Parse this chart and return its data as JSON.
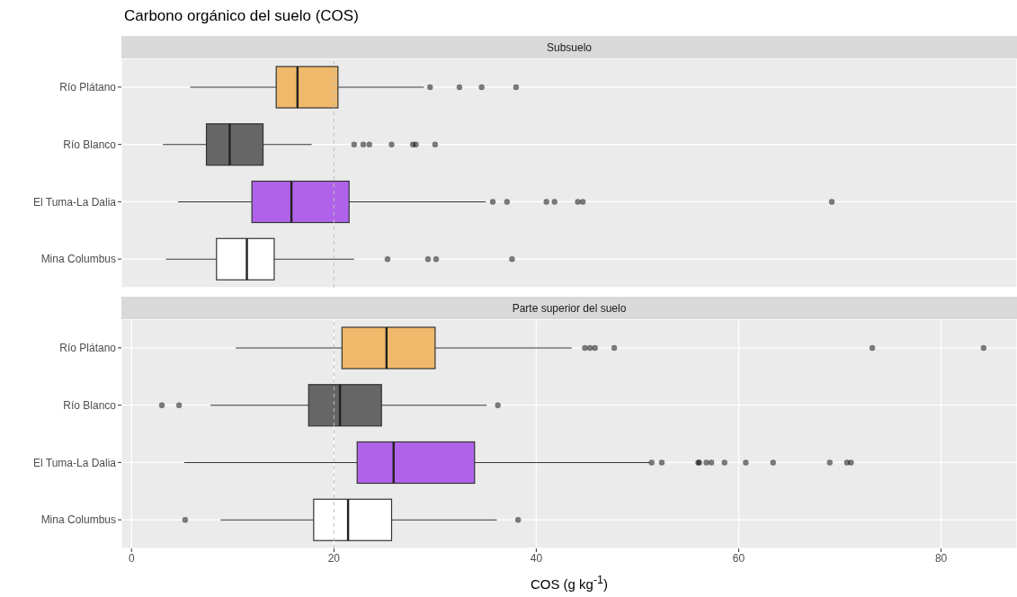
{
  "chart_data": [
    {
      "type": "box",
      "title": "Carbono orgánico del suelo (COS)",
      "subtitle": "Subsuelo",
      "orientation": "horizontal",
      "categories": [
        "Río Plátano",
        "Río Blanco",
        "El Tuma-La Dalia",
        "Mina Columbus"
      ],
      "boxes": [
        {
          "low": 5.8,
          "q1": 14.3,
          "median": 16.4,
          "q3": 20.4,
          "high": 28.9,
          "outliers": [
            29.5,
            32.4,
            34.6,
            38.0
          ]
        },
        {
          "low": 3.1,
          "q1": 7.4,
          "median": 9.7,
          "q3": 13.0,
          "high": 17.8,
          "outliers": [
            22.0,
            22.9,
            23.5,
            25.7,
            27.8,
            28.1,
            30.0
          ]
        },
        {
          "low": 4.6,
          "q1": 11.9,
          "median": 15.8,
          "q3": 21.5,
          "high": 35.0,
          "outliers": [
            35.7,
            37.1,
            41.0,
            41.8,
            44.1,
            44.6,
            69.2
          ]
        },
        {
          "low": 3.4,
          "q1": 8.4,
          "median": 11.4,
          "q3": 14.1,
          "high": 22.0,
          "outliers": [
            25.3,
            29.3,
            30.1,
            37.6
          ]
        }
      ],
      "colors": [
        "#f0b86a",
        "#666666",
        "#b063ea",
        "#ffffff"
      ],
      "xlim": [
        -1,
        87.5
      ],
      "xticks": [
        0,
        20,
        40,
        60,
        80
      ],
      "tick_labels": "y",
      "grid": true,
      "ref_lines": [
        {
          "axis": "x",
          "value": 20,
          "color": "#bdbdbd",
          "line_style": "dashed"
        }
      ]
    },
    {
      "type": "box",
      "subtitle": "Parte superior del suelo",
      "xlabel": "COS (g kg$^{-1}$)",
      "orientation": "horizontal",
      "categories": [
        "Río Plátano",
        "Río Blanco",
        "El Tuma-La Dalia",
        "Mina Columbus"
      ],
      "boxes": [
        {
          "low": 10.3,
          "q1": 20.8,
          "median": 25.2,
          "q3": 30.0,
          "high": 43.5,
          "outliers": [
            44.8,
            45.3,
            45.8,
            47.7,
            73.2,
            84.2
          ]
        },
        {
          "low": 7.8,
          "q1": 17.5,
          "median": 20.6,
          "q3": 24.7,
          "high": 35.1,
          "outliers": [
            3.0,
            4.7,
            36.2
          ]
        },
        {
          "low": 5.2,
          "q1": 22.3,
          "median": 25.9,
          "q3": 33.9,
          "high": 51.2,
          "outliers": [
            51.4,
            52.4,
            56.0,
            56.1,
            56.8,
            57.3,
            58.6,
            60.7,
            63.4,
            69.0,
            70.7,
            71.1
          ]
        },
        {
          "low": 8.8,
          "q1": 18.0,
          "median": 21.4,
          "q3": 25.7,
          "high": 36.1,
          "outliers": [
            5.3,
            38.2
          ]
        }
      ],
      "colors": [
        "#f0b86a",
        "#666666",
        "#b063ea",
        "#ffffff"
      ],
      "xlim": [
        -1,
        87.5
      ],
      "xticks": [
        0,
        20,
        40,
        60,
        80
      ],
      "grid": true,
      "ref_lines": [
        {
          "axis": "x",
          "value": 20,
          "color": "#bdbdbd",
          "line_style": "dashed"
        }
      ]
    }
  ]
}
